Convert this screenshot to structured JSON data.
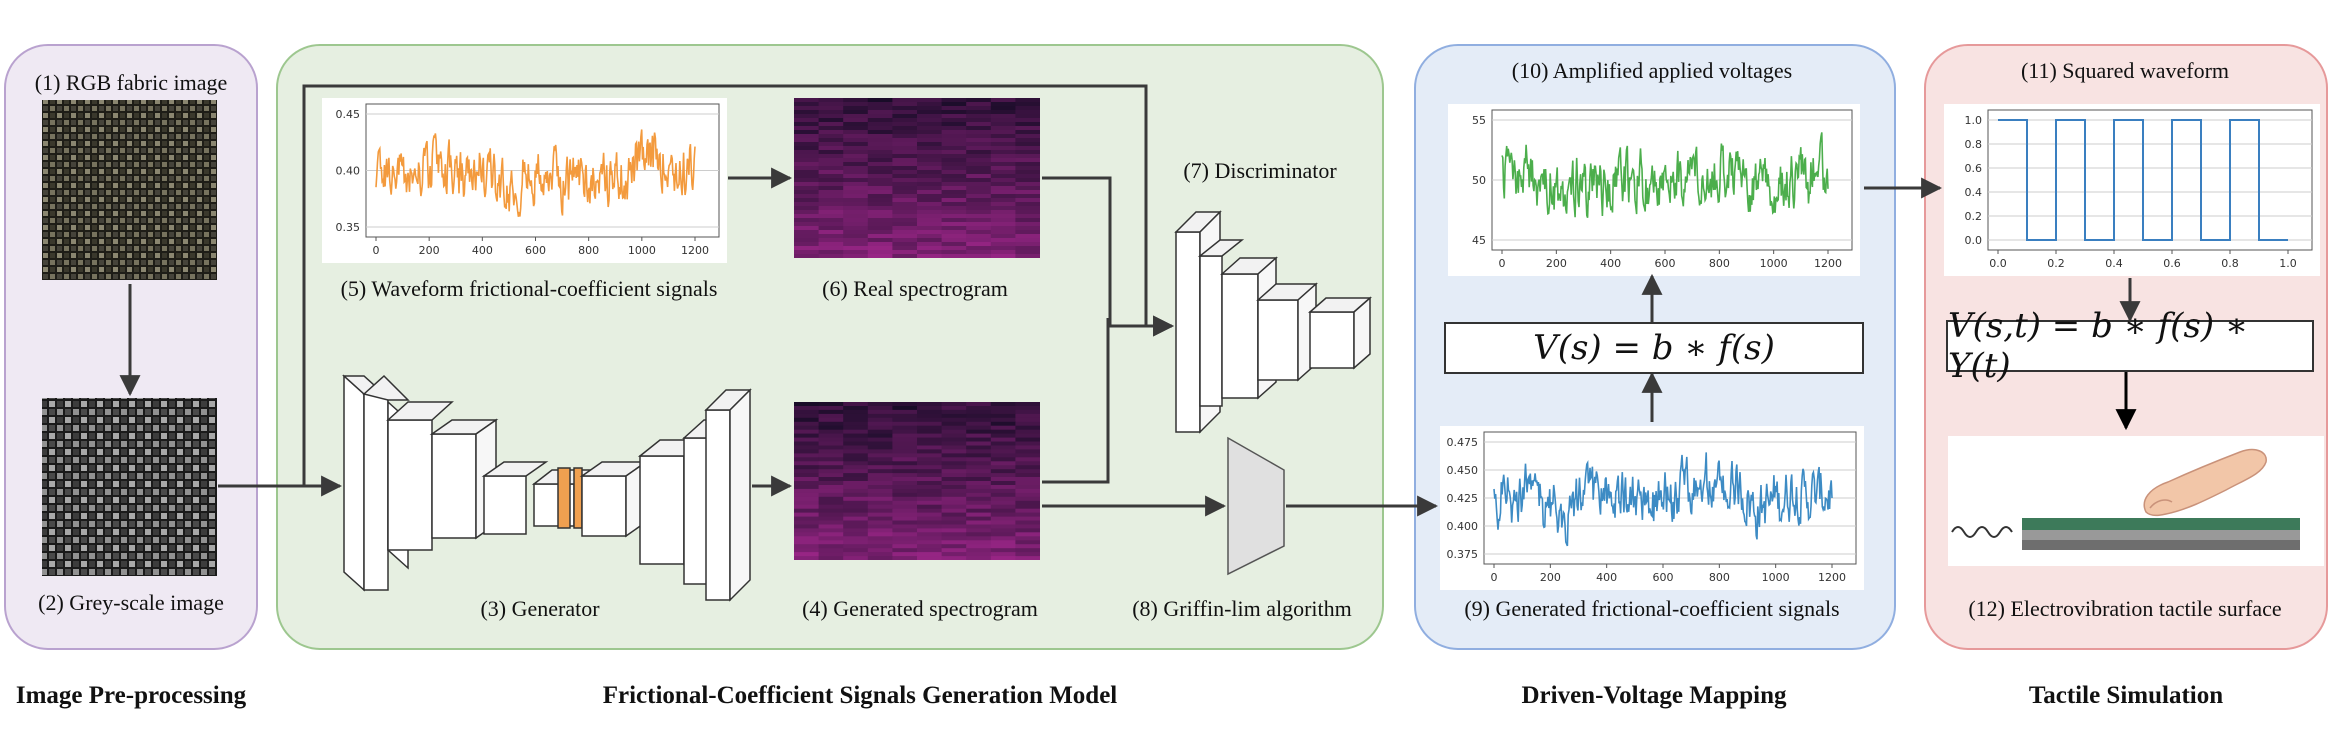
{
  "sections": {
    "preprocessing": "Image Pre-processing",
    "generation": "Frictional-Coefficient Signals Generation Model",
    "mapping": "Driven-Voltage Mapping",
    "tactile": "Tactile Simulation"
  },
  "labels": {
    "rgb": "(1) RGB fabric image",
    "grey": "(2) Grey-scale image",
    "generator": "(3) Generator",
    "gen_spec": "(4) Generated spectrogram",
    "waveform": "(5) Waveform frictional-coefficient signals",
    "real_spec": "(6) Real spectrogram",
    "discriminator": "(7) Discriminator",
    "griffin": "(8) Griffin-lim algorithm",
    "gen_signals": "(9) Generated frictional-coefficient signals",
    "amplified": "(10) Amplified applied voltages",
    "squared": "(11) Squared  waveform",
    "surface": "(12) Electrovibration tactile surface"
  },
  "equations": {
    "mapping": "V(s) = b ∗ f(s)",
    "tactile": "V(s,t) = b ∗ f(s) ∗ Y(t)"
  },
  "plots": {
    "waveform": {
      "color": "#f39a3d",
      "yticks": [
        "0.45",
        "0.40",
        "0.35"
      ],
      "xticks": [
        "0",
        "200",
        "400",
        "600",
        "800",
        "1000",
        "1200"
      ]
    },
    "amplified": {
      "color": "#4cae4c",
      "yticks": [
        "55",
        "50",
        "45"
      ],
      "xticks": [
        "0",
        "200",
        "400",
        "600",
        "800",
        "1000",
        "1200"
      ]
    },
    "generated": {
      "color": "#3d8bc4",
      "yticks": [
        "0.475",
        "0.450",
        "0.425",
        "0.400",
        "0.375"
      ],
      "xticks": [
        "0",
        "200",
        "400",
        "600",
        "800",
        "1000",
        "1200"
      ]
    },
    "squared": {
      "color": "#3a7fc0",
      "yticks": [
        "1.0",
        "0.8",
        "0.6",
        "0.4",
        "0.2",
        "0.0"
      ],
      "xticks": [
        "0.0",
        "0.2",
        "0.4",
        "0.6",
        "0.8",
        "1.0"
      ]
    }
  },
  "colors": {
    "preprocessing_bg": "#efe9f3",
    "preprocessing_border": "#b9a2cf",
    "generation_bg": "#e6efe1",
    "generation_border": "#9dc78f",
    "mapping_bg": "#e4ecf7",
    "mapping_border": "#90aee0",
    "tactile_bg": "#f8e3e2",
    "tactile_border": "#e6999a",
    "bottleneck": "#f0a050"
  }
}
